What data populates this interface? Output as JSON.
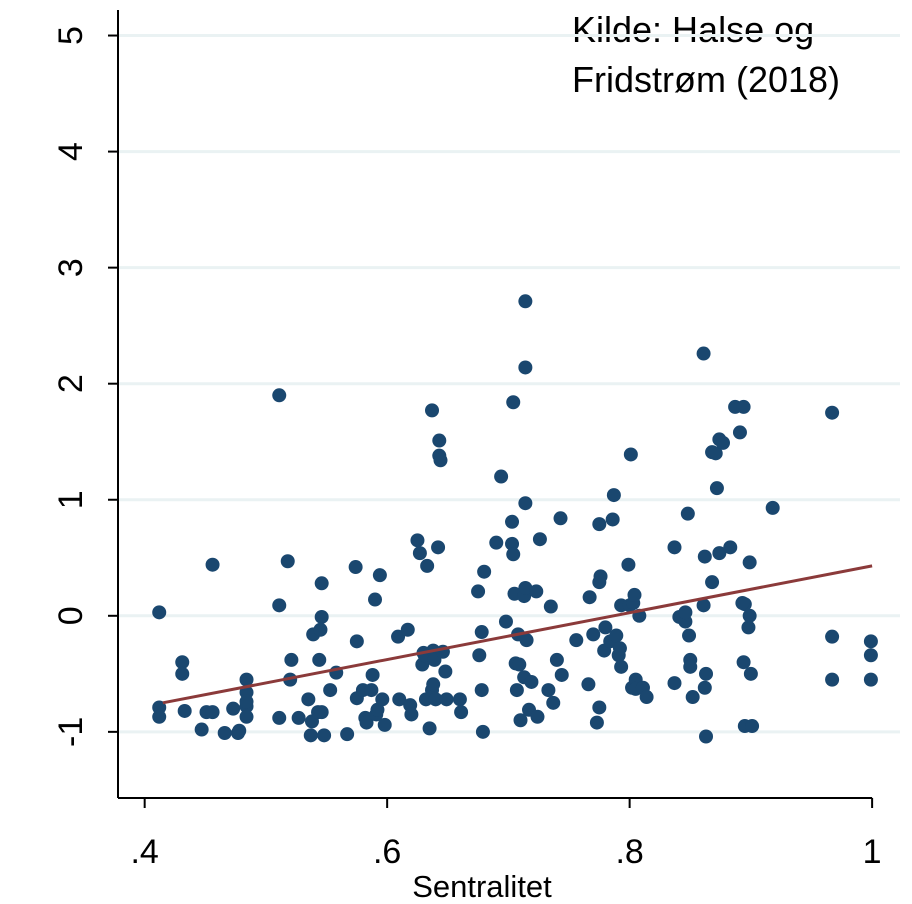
{
  "chart_data": {
    "type": "scatter",
    "annotation": [
      "Kilde: Halse og",
      "Fridstrøm (2018)"
    ],
    "x_label": "Sentralitet",
    "color": "#1a476f",
    "x": [
      0.412,
      0.412,
      0.412,
      0.431,
      0.431,
      0.433,
      0.447,
      0.451,
      0.456,
      0.456,
      0.466,
      0.473,
      0.477,
      0.478,
      0.484,
      0.484,
      0.484,
      0.484,
      0.484,
      0.511,
      0.511,
      0.511,
      0.518,
      0.521,
      0.52,
      0.527,
      0.535,
      0.537,
      0.538,
      0.539,
      0.543,
      0.544,
      0.546,
      0.546,
      0.545,
      0.546,
      0.548,
      0.553,
      0.558,
      0.567,
      0.574,
      0.575,
      0.575,
      0.58,
      0.582,
      0.583,
      0.587,
      0.588,
      0.59,
      0.591,
      0.592,
      0.594,
      0.596,
      0.598,
      0.609,
      0.61,
      0.617,
      0.619,
      0.62,
      0.625,
      0.627,
      0.629,
      0.63,
      0.631,
      0.632,
      0.633,
      0.635,
      0.637,
      0.637,
      0.638,
      0.638,
      0.639,
      0.64,
      0.642,
      0.643,
      0.643,
      0.644,
      0.646,
      0.648,
      0.649,
      0.66,
      0.661,
      0.675,
      0.676,
      0.678,
      0.678,
      0.679,
      0.68,
      0.69,
      0.694,
      0.698,
      0.703,
      0.703,
      0.704,
      0.704,
      0.705,
      0.706,
      0.707,
      0.708,
      0.709,
      0.71,
      0.713,
      0.713,
      0.714,
      0.714,
      0.714,
      0.714,
      0.715,
      0.717,
      0.719,
      0.723,
      0.724,
      0.726,
      0.733,
      0.735,
      0.737,
      0.74,
      0.743,
      0.744,
      0.756,
      0.767,
      0.766,
      0.77,
      0.773,
      0.775,
      0.775,
      0.776,
      0.779,
      0.775,
      0.78,
      0.784,
      0.786,
      0.787,
      0.789,
      0.791,
      0.792,
      0.793,
      0.793,
      0.799,
      0.8,
      0.801,
      0.802,
      0.803,
      0.804,
      0.805,
      0.805,
      0.808,
      0.811,
      0.814,
      0.837,
      0.837,
      0.841,
      0.846,
      0.846,
      0.848,
      0.849,
      0.85,
      0.85,
      0.852,
      0.861,
      0.862,
      0.861,
      0.862,
      0.863,
      0.863,
      0.868,
      0.868,
      0.871,
      0.872,
      0.874,
      0.874,
      0.887,
      0.891,
      0.894,
      0.894,
      0.895,
      0.895,
      0.898,
      0.899,
      0.899,
      0.9,
      0.901,
      0.967,
      0.967,
      0.967,
      0.999,
      0.999,
      0.999,
      0.918,
      0.877,
      0.883,
      0.893
    ],
    "values": [
      0.03,
      -0.79,
      -0.87,
      -0.4,
      -0.5,
      -0.82,
      -0.98,
      -0.83,
      -0.83,
      0.44,
      -1.01,
      -0.8,
      -1.01,
      -0.99,
      -0.55,
      -0.66,
      -0.78,
      -0.87,
      -0.74,
      1.9,
      0.09,
      -0.88,
      0.47,
      -0.38,
      -0.55,
      -0.88,
      -0.72,
      -1.03,
      -0.91,
      -0.16,
      -0.83,
      -0.38,
      0.28,
      -0.01,
      -0.12,
      -0.83,
      -1.03,
      -0.64,
      -0.49,
      -1.02,
      0.42,
      -0.22,
      -0.71,
      -0.64,
      -0.88,
      -0.92,
      -0.64,
      -0.51,
      0.14,
      -0.85,
      -0.81,
      0.35,
      -0.72,
      -0.94,
      -0.18,
      -0.72,
      -0.12,
      -0.77,
      -0.85,
      0.65,
      0.54,
      -0.42,
      -0.32,
      -0.34,
      -0.72,
      0.43,
      -0.97,
      1.77,
      -0.64,
      -0.3,
      -0.59,
      -0.38,
      -0.72,
      0.59,
      1.51,
      1.38,
      1.34,
      -0.31,
      -0.48,
      -0.72,
      -0.72,
      -0.83,
      0.21,
      -0.34,
      -0.64,
      -0.14,
      -1.0,
      0.38,
      0.63,
      1.2,
      -0.05,
      0.62,
      0.81,
      1.84,
      0.53,
      0.19,
      -0.41,
      -0.64,
      -0.16,
      -0.42,
      -0.9,
      -0.53,
      0.17,
      2.71,
      2.14,
      0.97,
      0.24,
      -0.21,
      -0.81,
      -0.57,
      0.21,
      -0.87,
      0.66,
      -0.64,
      0.08,
      -0.75,
      -0.38,
      0.84,
      -0.51,
      -0.21,
      0.16,
      -0.59,
      -0.16,
      -0.92,
      0.79,
      0.29,
      0.34,
      -0.3,
      -0.79,
      -0.1,
      -0.22,
      0.83,
      1.04,
      -0.17,
      -0.34,
      -0.28,
      0.09,
      -0.44,
      0.44,
      0.09,
      1.39,
      -0.62,
      0.11,
      0.18,
      -0.55,
      -0.63,
      0,
      -0.62,
      -0.7,
      0.59,
      -0.58,
      -0.01,
      -0.05,
      0.03,
      0.88,
      -0.17,
      -0.38,
      -0.44,
      -0.7,
      2.26,
      0.51,
      0.09,
      -0.62,
      -0.5,
      -1.04,
      0.29,
      1.41,
      1.4,
      1.1,
      0.54,
      1.52,
      1.8,
      1.58,
      1.8,
      -0.4,
      -0.95,
      0.1,
      -0.1,
      0,
      0.46,
      -0.5,
      -0.95,
      1.75,
      -0.18,
      -0.55,
      -0.22,
      -0.34,
      -0.55,
      0.93,
      1.49,
      0.59,
      0.11
    ],
    "fit_line": {
      "x": [
        0.415,
        1.0
      ],
      "values": [
        -0.75,
        0.43
      ],
      "color": "#8b3a3a"
    },
    "xlim": [
      0.378,
      1.023
    ],
    "ylim": [
      -1.57,
      5.22
    ],
    "xticks": [
      {
        "value": 0.4,
        "label": ".4"
      },
      {
        "value": 0.6,
        "label": ".6"
      },
      {
        "value": 0.8,
        "label": ".8"
      },
      1
    ],
    "yticks": [
      -1,
      0,
      1,
      2,
      3,
      4,
      5
    ],
    "grid": true
  }
}
